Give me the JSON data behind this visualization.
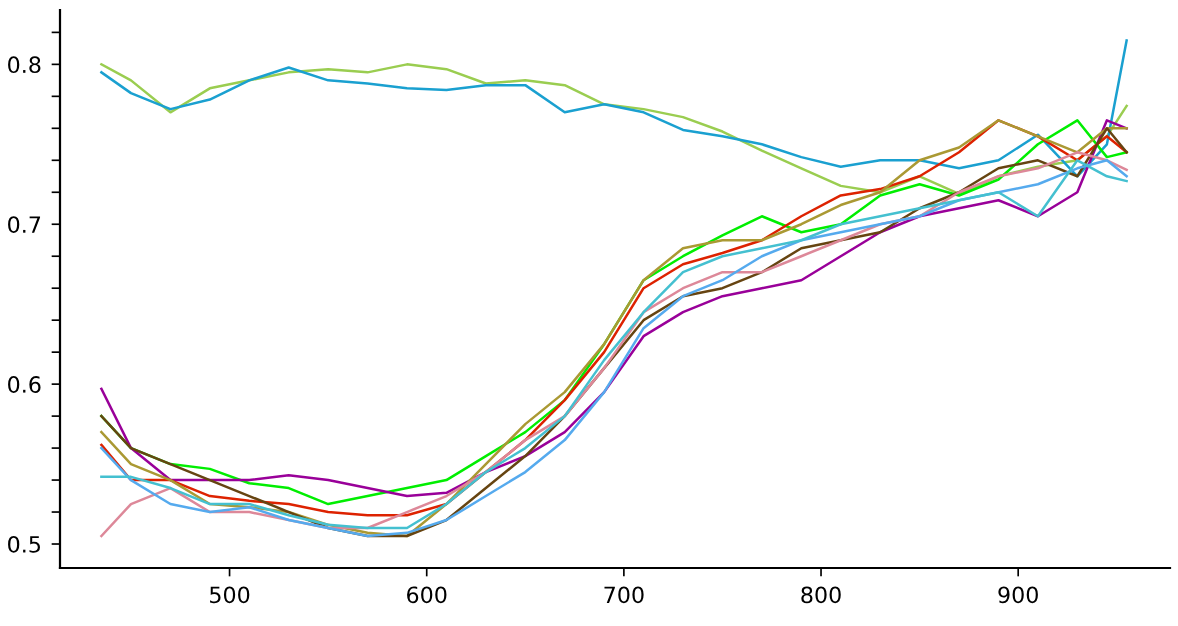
{
  "chart_data": {
    "type": "line",
    "x": [
      435,
      450,
      470,
      490,
      510,
      530,
      550,
      570,
      590,
      610,
      630,
      650,
      670,
      690,
      710,
      730,
      750,
      770,
      790,
      810,
      830,
      850,
      870,
      890,
      910,
      930,
      945,
      955
    ],
    "series": [
      {
        "color": "#9acd50",
        "values": [
          0.8,
          0.79,
          0.77,
          0.785,
          0.79,
          0.795,
          0.797,
          0.795,
          0.8,
          0.797,
          0.788,
          0.79,
          0.787,
          0.775,
          0.772,
          0.767,
          0.758,
          0.746,
          0.735,
          0.724,
          0.72,
          0.73,
          0.719,
          0.73,
          0.736,
          0.74,
          0.755,
          0.774
        ]
      },
      {
        "color": "#1aa0d0",
        "values": [
          0.795,
          0.782,
          0.772,
          0.778,
          0.79,
          0.798,
          0.79,
          0.788,
          0.785,
          0.784,
          0.787,
          0.787,
          0.77,
          0.775,
          0.77,
          0.759,
          0.755,
          0.75,
          0.742,
          0.736,
          0.74,
          0.74,
          0.735,
          0.74,
          0.756,
          0.73,
          0.75,
          0.815
        ]
      },
      {
        "color": "#00ee00",
        "values": [
          0.58,
          0.56,
          0.55,
          0.547,
          0.538,
          0.535,
          0.525,
          0.53,
          0.535,
          0.54,
          0.555,
          0.57,
          0.59,
          0.625,
          0.665,
          0.68,
          0.693,
          0.705,
          0.695,
          0.7,
          0.718,
          0.725,
          0.718,
          0.728,
          0.75,
          0.765,
          0.742,
          0.745
        ]
      },
      {
        "color": "#990099",
        "values": [
          0.597,
          0.56,
          0.54,
          0.54,
          0.54,
          0.543,
          0.54,
          0.535,
          0.53,
          0.532,
          0.545,
          0.555,
          0.57,
          0.595,
          0.63,
          0.645,
          0.655,
          0.66,
          0.665,
          0.68,
          0.695,
          0.705,
          0.71,
          0.715,
          0.705,
          0.72,
          0.765,
          0.76
        ]
      },
      {
        "color": "#dd2200",
        "values": [
          0.562,
          0.54,
          0.54,
          0.53,
          0.527,
          0.525,
          0.52,
          0.518,
          0.518,
          0.525,
          0.545,
          0.565,
          0.59,
          0.62,
          0.66,
          0.675,
          0.682,
          0.69,
          0.705,
          0.718,
          0.722,
          0.73,
          0.745,
          0.765,
          0.755,
          0.74,
          0.755,
          0.745
        ]
      },
      {
        "color": "#aa9933",
        "values": [
          0.57,
          0.55,
          0.54,
          0.525,
          0.523,
          0.52,
          0.512,
          0.507,
          0.505,
          0.525,
          0.55,
          0.575,
          0.595,
          0.625,
          0.665,
          0.685,
          0.69,
          0.69,
          0.7,
          0.712,
          0.72,
          0.74,
          0.748,
          0.765,
          0.755,
          0.745,
          0.76,
          0.76
        ]
      },
      {
        "color": "#664411",
        "values": [
          0.58,
          0.56,
          0.55,
          0.54,
          0.53,
          0.52,
          0.51,
          0.505,
          0.505,
          0.515,
          0.535,
          0.555,
          0.58,
          0.61,
          0.64,
          0.655,
          0.66,
          0.67,
          0.685,
          0.69,
          0.695,
          0.71,
          0.72,
          0.735,
          0.74,
          0.73,
          0.76,
          0.745
        ]
      },
      {
        "color": "#dd8899",
        "values": [
          0.505,
          0.525,
          0.535,
          0.52,
          0.52,
          0.515,
          0.51,
          0.51,
          0.52,
          0.53,
          0.545,
          0.565,
          0.58,
          0.61,
          0.645,
          0.66,
          0.67,
          0.67,
          0.68,
          0.69,
          0.7,
          0.705,
          0.72,
          0.73,
          0.735,
          0.745,
          0.74,
          0.734
        ]
      },
      {
        "color": "#55aaee",
        "values": [
          0.56,
          0.54,
          0.525,
          0.52,
          0.523,
          0.515,
          0.51,
          0.505,
          0.507,
          0.515,
          0.53,
          0.545,
          0.565,
          0.595,
          0.635,
          0.655,
          0.665,
          0.68,
          0.69,
          0.695,
          0.7,
          0.705,
          0.715,
          0.72,
          0.725,
          0.735,
          0.74,
          0.73
        ]
      },
      {
        "color": "#44c0d0",
        "values": [
          0.542,
          0.542,
          0.535,
          0.525,
          0.525,
          0.518,
          0.512,
          0.51,
          0.51,
          0.525,
          0.545,
          0.56,
          0.58,
          0.615,
          0.645,
          0.67,
          0.68,
          0.685,
          0.69,
          0.7,
          0.705,
          0.71,
          0.715,
          0.72,
          0.705,
          0.74,
          0.73,
          0.727
        ]
      }
    ],
    "xlim": [
      414,
      977
    ],
    "ylim": [
      0.485,
      0.834
    ],
    "xticks": [
      500,
      600,
      700,
      800,
      900
    ],
    "yticks": [
      0.5,
      {
        "value": 0.52,
        "label": null
      },
      {
        "value": 0.54,
        "label": null
      },
      {
        "value": 0.56,
        "label": null
      },
      {
        "value": 0.58,
        "label": null
      },
      0.6,
      {
        "value": 0.62,
        "label": null
      },
      {
        "value": 0.64,
        "label": null
      },
      {
        "value": 0.66,
        "label": null
      },
      {
        "value": 0.68,
        "label": null
      },
      0.7,
      {
        "value": 0.72,
        "label": null
      },
      {
        "value": 0.74,
        "label": null
      },
      {
        "value": 0.76,
        "label": null
      },
      {
        "value": 0.78,
        "label": null
      },
      0.8,
      {
        "value": 0.82,
        "label": null
      }
    ],
    "grid": false,
    "legend": false,
    "marker": "none",
    "line_style": "solid"
  }
}
